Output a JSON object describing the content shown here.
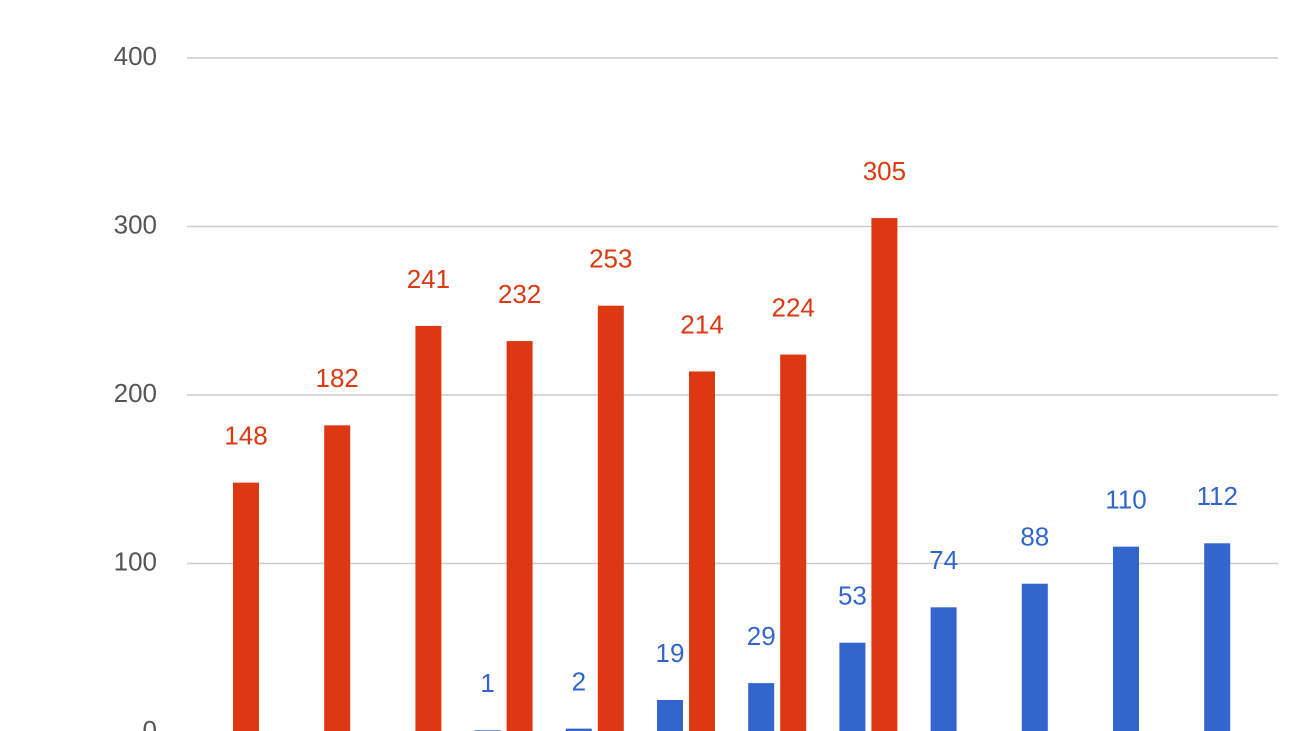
{
  "chart_data": {
    "type": "bar",
    "categories": [
      null,
      null,
      null,
      null,
      null,
      null,
      null,
      null,
      null,
      null,
      null,
      null
    ],
    "series": [
      {
        "color": "#3366cc",
        "values": [
          null,
          null,
          null,
          1,
          2,
          19,
          29,
          53,
          74,
          88,
          110,
          112
        ]
      },
      {
        "color": "#dc3912",
        "values": [
          148,
          182,
          241,
          232,
          253,
          214,
          224,
          305,
          null,
          null,
          null,
          null
        ]
      }
    ],
    "ylim": [
      0,
      400
    ],
    "yticks": [
      0,
      100,
      200,
      300,
      400
    ],
    "grid": true
  }
}
